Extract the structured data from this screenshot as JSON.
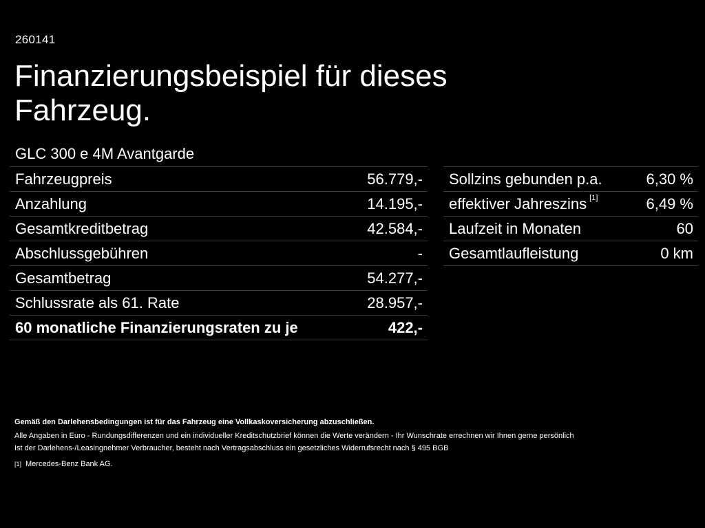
{
  "reference_number": "260141",
  "title": "Finanzierungsbeispiel für dieses Fahrzeug.",
  "model": "GLC 300 e 4M Avantgarde",
  "left_table": [
    {
      "label": "Fahrzeugpreis",
      "value": "56.779,-"
    },
    {
      "label": "Anzahlung",
      "value": "14.195,-"
    },
    {
      "label": "Gesamtkreditbetrag",
      "value": "42.584,-"
    },
    {
      "label": "Abschlussgebühren",
      "value": "-"
    },
    {
      "label": "Gesamtbetrag",
      "value": "54.277,-"
    },
    {
      "label": "Schlussrate als 61. Rate",
      "value": "28.957,-"
    },
    {
      "label": "60 monatliche Finanzierungsraten zu je",
      "value": "422,-"
    }
  ],
  "right_table": [
    {
      "label": "Sollzins gebunden p.a.",
      "value": "6,30 %"
    },
    {
      "label": "effektiver Jahreszins",
      "footnote": "[1]",
      "value": "6,49 %"
    },
    {
      "label": "Laufzeit in Monaten",
      "value": "60"
    },
    {
      "label": "Gesamtlaufleistung",
      "value": "0 km"
    }
  ],
  "notes": {
    "heading": "Gemäß den Darlehensbedingungen ist für das Fahrzeug eine Vollkaskoversicherung abzuschließen.",
    "line1": "Alle Angaben in Euro - Rundungsdifferenzen und ein individueller Kreditschutzbrief können die Werte verändern - Ihr Wunschrate errechnen wir Ihnen gerne persönlich",
    "line2": "Ist der Darlehens-/Leasingnehmer Verbraucher, besteht nach Vertragsabschluss ein gesetzliches Widerrufsrecht nach § 495 BGB",
    "footnote_mark": "[1]",
    "footnote_text": "Mercedes-Benz Bank AG."
  }
}
